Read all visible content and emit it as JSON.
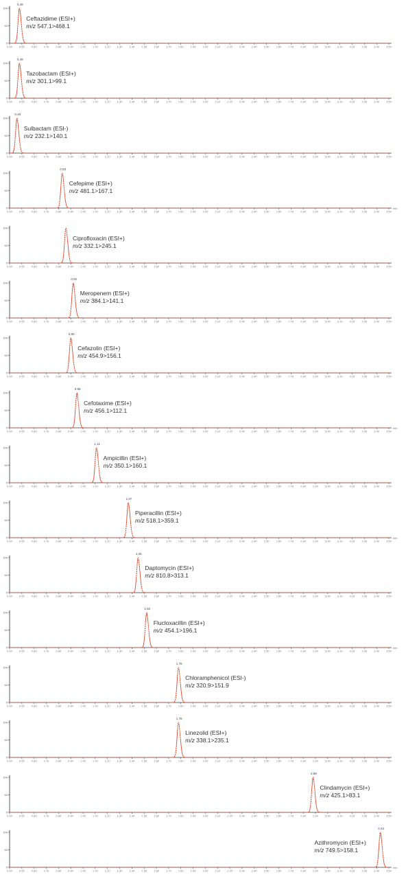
{
  "style": {
    "trace_color": "#d9482b",
    "axis_color": "#333333",
    "text_color": "#333333"
  },
  "chart_data": {
    "type": "line",
    "xaxis": {
      "ticks": [
        "0.40",
        "0.50",
        "0.60",
        "0.70",
        "0.80",
        "0.90",
        "1.00",
        "1.10",
        "1.20",
        "1.30",
        "1.40",
        "1.50",
        "1.60",
        "1.70",
        "1.80",
        "1.90",
        "2.00",
        "2.10",
        "2.20",
        "2.30",
        "2.40",
        "2.50",
        "2.60",
        "2.70",
        "2.80",
        "2.90",
        "3.00",
        "3.10",
        "3.20",
        "3.30",
        "3.40",
        "3.50"
      ],
      "unit": "min",
      "range": [
        0.4,
        3.5
      ]
    },
    "yaxis": {
      "ticks": [
        "0",
        "50",
        "100"
      ],
      "range": [
        0,
        100
      ]
    },
    "series": [
      {
        "name": "Ceftazidime (ESI+)",
        "mz_prefix": "m/z",
        "transition": "547.1>468.1",
        "rt": 0.48,
        "peak_label": "0.48",
        "xunit": ""
      },
      {
        "name": "Tazobactam (ESI+)",
        "mz_prefix": "m/z",
        "transition": "301.1>99.1",
        "rt": 0.48,
        "peak_label": "0.48",
        "xunit": ""
      },
      {
        "name": "Sulbactam (ESI-)",
        "mz_prefix": "m/z",
        "transition": "232.1>140.1",
        "rt": 0.46,
        "peak_label": "0.46",
        "xunit": ""
      },
      {
        "name": "Cefepime (ESI+)",
        "mz_prefix": "m/z",
        "transition": "481.1>167.1",
        "rt": 0.83,
        "peak_label": "0.83",
        "xunit": "min"
      },
      {
        "name": "Ciprofloxacin (ESI+)",
        "mz_prefix": "m/z",
        "transition": "332.1>245.1",
        "rt": 0.86,
        "peak_label": "",
        "xunit": ""
      },
      {
        "name": "Meropenem (ESI+)",
        "mz_prefix": "m/z",
        "transition": "384.1>141.1",
        "rt": 0.92,
        "peak_label": "0.92",
        "xunit": ""
      },
      {
        "name": "Cefazolin (ESI+)",
        "mz_prefix": "m/z",
        "transition": "454.9>156.1",
        "rt": 0.9,
        "peak_label": "0.90",
        "xunit": ""
      },
      {
        "name": "Cefotaxime (ESI+)",
        "mz_prefix": "m/z",
        "transition": "456.1>112.1",
        "rt": 0.95,
        "peak_label": "0.95",
        "xunit": "min"
      },
      {
        "name": "Ampicillin (ESI+)",
        "mz_prefix": "m/z",
        "transition": "350.1>160.1",
        "rt": 1.11,
        "peak_label": "1.11",
        "xunit": ""
      },
      {
        "name": "Piperacillin (ESI+)",
        "mz_prefix": "m/z",
        "transition": "518.1>359.1",
        "rt": 1.37,
        "peak_label": "1.37",
        "xunit": "min"
      },
      {
        "name": "Daptomycin (ESI+)",
        "mz_prefix": "m/z",
        "transition": "810.8>313.1",
        "rt": 1.45,
        "peak_label": "1.45",
        "xunit": ""
      },
      {
        "name": "Flucloxacillin (ESI+)",
        "mz_prefix": "m/z",
        "transition": "454.1>196.1",
        "rt": 1.52,
        "peak_label": "1.52",
        "xunit": "min"
      },
      {
        "name": "Chloramphenicol (ESI-)",
        "mz_prefix": "m/z",
        "transition": "320.9>151.9",
        "rt": 1.78,
        "peak_label": "1.78",
        "xunit": ""
      },
      {
        "name": "Linezolid (ESI+)",
        "mz_prefix": "m/z",
        "transition": "338.1>235.1",
        "rt": 1.78,
        "peak_label": "1.78",
        "xunit": ""
      },
      {
        "name": "Clindamycin (ESI+)",
        "mz_prefix": "m/z",
        "transition": "425.1>83.1",
        "rt": 2.88,
        "peak_label": "2.88",
        "xunit": ""
      },
      {
        "name": "Azithromycin (ESI+)",
        "mz_prefix": "m/z",
        "transition": "749.5>158.1",
        "rt": 3.43,
        "peak_label": "3.43",
        "xunit": "min"
      }
    ]
  }
}
